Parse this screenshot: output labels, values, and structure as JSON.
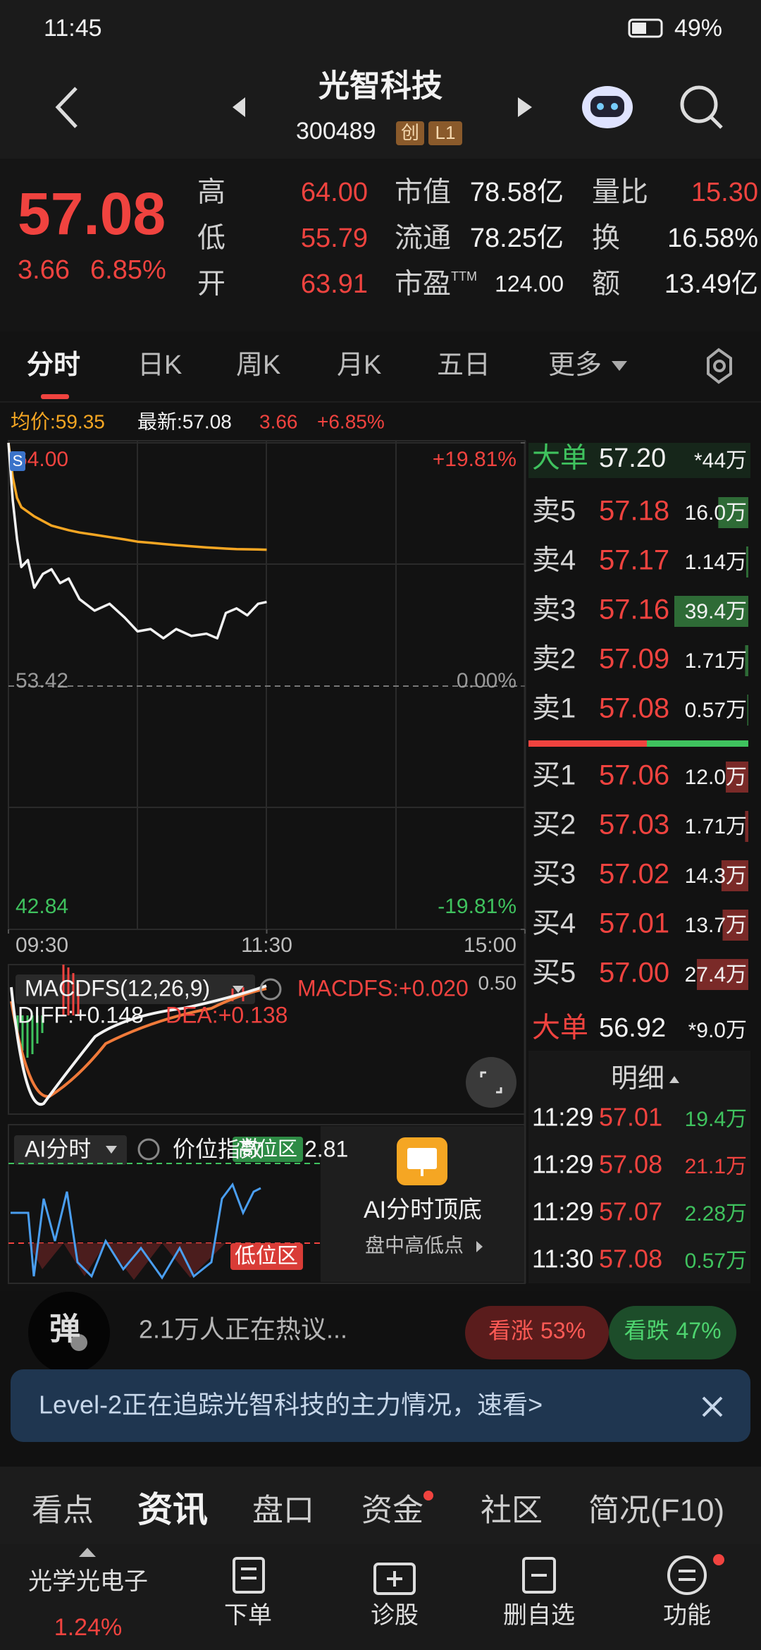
{
  "status_bar": {
    "time": "11:45",
    "battery": "49%"
  },
  "header": {
    "title": "光智科技",
    "code": "300489",
    "badges": [
      "创",
      "L1"
    ]
  },
  "quote": {
    "price": "57.08",
    "change": "3.66",
    "change_pct": "6.85%",
    "stats": [
      {
        "label": "高",
        "value": "64.00"
      },
      {
        "label": "低",
        "value": "55.79"
      },
      {
        "label": "开",
        "value": "63.91"
      },
      {
        "label": "市值",
        "value": "78.58亿"
      },
      {
        "label": "流通",
        "value": "78.25亿"
      },
      {
        "label": "市盈",
        "sup": "TTM",
        "value": "124.00"
      },
      {
        "label": "量比",
        "value": "15.30"
      },
      {
        "label": "换",
        "value": "16.58%"
      },
      {
        "label": "额",
        "value": "13.49亿"
      }
    ]
  },
  "period_tabs": [
    "分时",
    "日K",
    "周K",
    "月K",
    "五日",
    "更多"
  ],
  "info_row": {
    "avg": "均价:59.35",
    "latest": "最新:57.08",
    "change": "3.66",
    "change_pct": "+6.85%"
  },
  "chart_data": {
    "type": "line",
    "start_marker": "S",
    "x": [
      0,
      2,
      4,
      6,
      9,
      12,
      16,
      20,
      24,
      28,
      33,
      40,
      47,
      54,
      60,
      66,
      72,
      78,
      85,
      92,
      97,
      101,
      106,
      111,
      116,
      120
    ],
    "series": [
      {
        "color": "#f2f2f2",
        "values": [
          64.0,
          61.5,
          59.8,
          58.6,
          58.9,
          57.7,
          58.3,
          58.5,
          57.9,
          58.1,
          57.2,
          56.7,
          57.0,
          56.4,
          55.8,
          55.9,
          55.5,
          55.9,
          55.6,
          55.7,
          55.5,
          56.6,
          56.8,
          56.5,
          57.0,
          57.08
        ]
      },
      {
        "color": "#f5a623",
        "values": [
          64.0,
          62.5,
          61.6,
          61.2,
          61.0,
          60.8,
          60.6,
          60.4,
          60.3,
          60.2,
          60.1,
          60.0,
          59.9,
          59.8,
          59.7,
          59.65,
          59.6,
          59.55,
          59.5,
          59.45,
          59.42,
          59.4,
          59.38,
          59.37,
          59.36,
          59.35
        ]
      }
    ],
    "xlim": [
      0,
      240
    ],
    "xticks": [
      {
        "value": 0,
        "label": "09:30"
      },
      {
        "value": 120,
        "label": "11:30"
      },
      {
        "value": 240,
        "label": "15:00"
      }
    ],
    "ylim": [
      42.84,
      64.0
    ],
    "yticks": [
      {
        "value": 64.0,
        "label": "64.00"
      },
      {
        "value": 53.42,
        "label": "53.42"
      },
      {
        "value": 42.84,
        "label": "42.84"
      }
    ],
    "y2lim": [
      -19.81,
      19.81
    ],
    "y2ticks": [
      {
        "value": 19.81,
        "label": "+19.81%"
      },
      {
        "value": 0,
        "label": "0.00%"
      },
      {
        "value": -19.81,
        "label": "-19.81%"
      }
    ],
    "grid": true
  },
  "macd": {
    "title": "MACDFS(12,26,9)",
    "macdfs": "MACDFS:+0.020",
    "scale": "0.50",
    "diff": "DIFF:+0.148",
    "dea": "DEA:+0.138"
  },
  "ai_panel": {
    "selector": "AI分时",
    "label": "价位指数",
    "high_badge": "高位区",
    "value": "2.81",
    "low_badge": "低位区",
    "promo_title": "AI分时顶底",
    "promo_sub": "盘中高低点"
  },
  "order_book": {
    "big_sell": {
      "label": "大单",
      "price": "57.20",
      "volume": "*44万"
    },
    "asks": [
      {
        "label": "卖5",
        "price": "57.18",
        "volume": 16.0,
        "volume_label": "16.0万"
      },
      {
        "label": "卖4",
        "price": "57.17",
        "volume": 1.14,
        "volume_label": "1.14万"
      },
      {
        "label": "卖3",
        "price": "57.16",
        "volume": 39.4,
        "volume_label": "39.4万"
      },
      {
        "label": "卖2",
        "price": "57.09",
        "volume": 1.71,
        "volume_label": "1.71万"
      },
      {
        "label": "卖1",
        "price": "57.08",
        "volume": 0.57,
        "volume_label": "0.57万"
      }
    ],
    "bids": [
      {
        "label": "买1",
        "price": "57.06",
        "volume": 12.0,
        "volume_label": "12.0万"
      },
      {
        "label": "买2",
        "price": "57.03",
        "volume": 1.71,
        "volume_label": "1.71万"
      },
      {
        "label": "买3",
        "price": "57.02",
        "volume": 14.3,
        "volume_label": "14.3万"
      },
      {
        "label": "买4",
        "price": "57.01",
        "volume": 13.7,
        "volume_label": "13.7万"
      },
      {
        "label": "买5",
        "price": "57.00",
        "volume": 27.4,
        "volume_label": "27.4万"
      }
    ],
    "big_buy": {
      "label": "大单",
      "price": "56.92",
      "volume": "*9.0万"
    },
    "detail_title": "明细",
    "trades": [
      {
        "time": "11:29",
        "price": "57.01",
        "volume": "19.4万",
        "color": "#3fc25e"
      },
      {
        "time": "11:29",
        "price": "57.08",
        "volume": "21.1万",
        "color": "#f0433f"
      },
      {
        "time": "11:29",
        "price": "57.07",
        "volume": "2.28万",
        "color": "#3fc25e"
      },
      {
        "time": "11:30",
        "price": "57.08",
        "volume": "0.57万",
        "color": "#3fc25e"
      }
    ]
  },
  "buzz": {
    "badge": "弹",
    "text": "2.1万人正在热议...",
    "sentiment": [
      {
        "label": "看涨",
        "value": 53,
        "value_label": "53%"
      },
      {
        "label": "看跌",
        "value": 47,
        "value_label": "47%"
      }
    ]
  },
  "banner": "Level-2正在追踪光智科技的主力情况，速看>",
  "content_tabs": [
    "看点",
    "资讯",
    "盘口",
    "资金",
    "社区",
    "简况(F10)"
  ],
  "bottom_nav": {
    "sector": "光学光电子",
    "sector_change": "1.24%",
    "items": [
      "下单",
      "诊股",
      "删自选",
      "功能"
    ]
  }
}
